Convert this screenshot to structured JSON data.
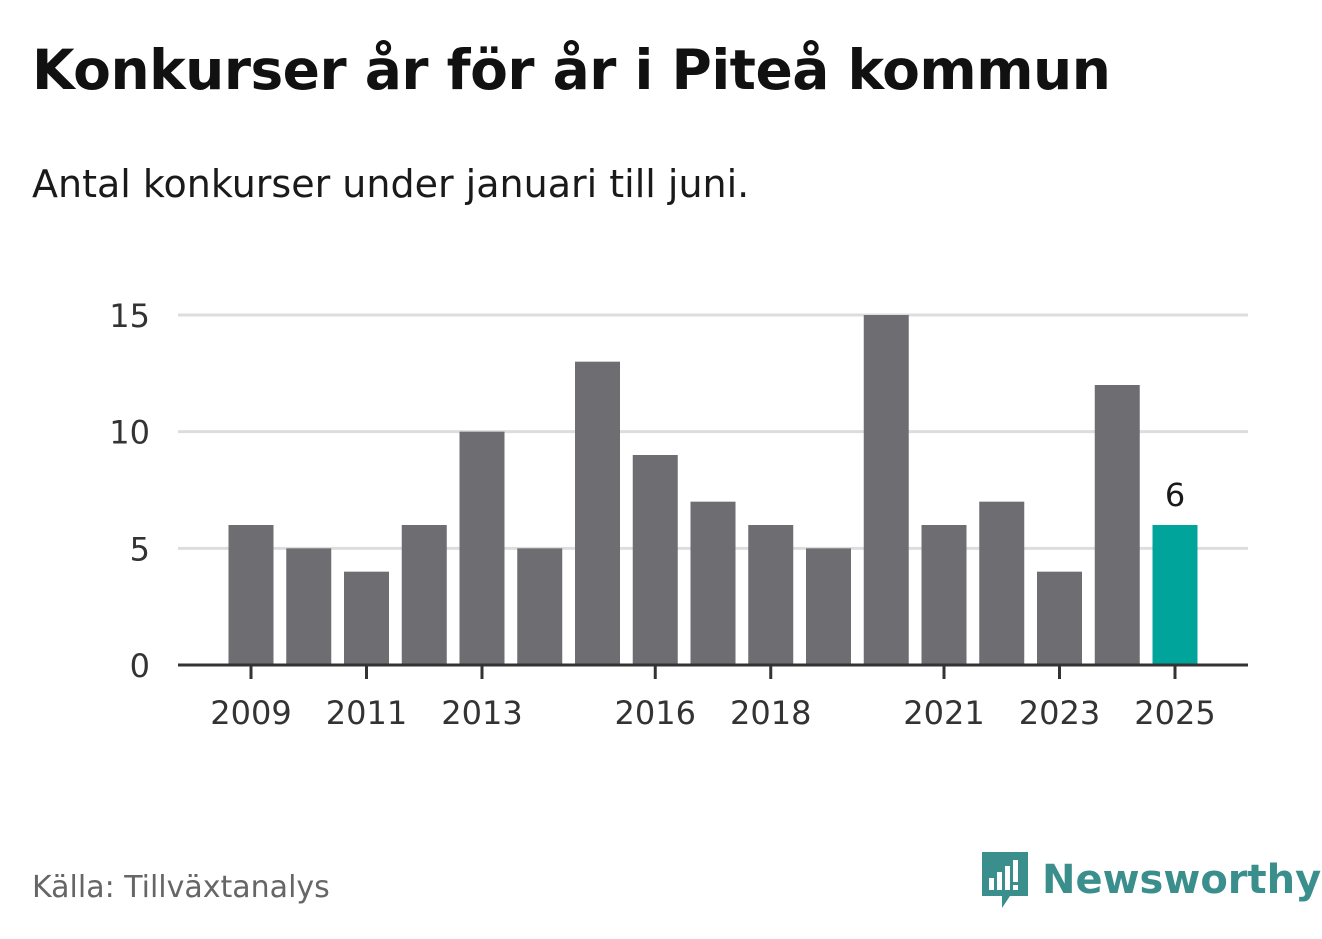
{
  "title": "Konkurser år för år i Piteå kommun",
  "subtitle": "Antal konkurser under januari till juni.",
  "source": "Källa: Tillväxtanalys",
  "brand": {
    "name": "Newsworthy",
    "icon": "newsworthy-logo-icon",
    "color": "#3a8f8c"
  },
  "chart_data": {
    "type": "bar",
    "categories": [
      "2009",
      "2010",
      "2011",
      "2012",
      "2013",
      "2014",
      "2015",
      "2016",
      "2017",
      "2018",
      "2019",
      "2020",
      "2021",
      "2022",
      "2023",
      "2024",
      "2025"
    ],
    "values": [
      6,
      5,
      4,
      6,
      10,
      5,
      13,
      9,
      7,
      6,
      5,
      15,
      6,
      7,
      4,
      12,
      6
    ],
    "x_tick_labels": [
      "2009",
      "2011",
      "2013",
      "2016",
      "2018",
      "2021",
      "2023",
      "2025"
    ],
    "y_ticks": [
      0,
      5,
      10,
      15
    ],
    "ylim": [
      0,
      15
    ],
    "grid": true,
    "highlight": {
      "category": "2025",
      "label": "6"
    },
    "colors": {
      "bar": "#6e6d72",
      "highlight": "#00a49a",
      "grid": "#dddddd",
      "axis": "#333333"
    }
  }
}
